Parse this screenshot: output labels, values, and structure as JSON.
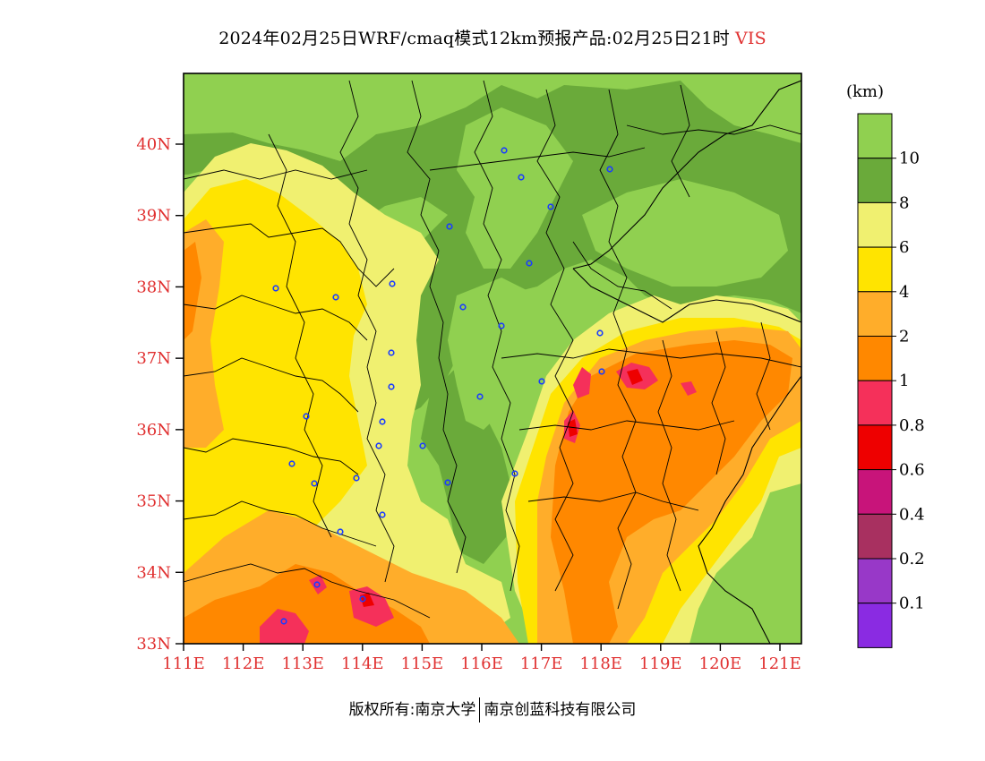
{
  "title": {
    "text": "2024年02月25日WRF/cmaq模式12km预报产品:02月25日21时",
    "variable": "VIS"
  },
  "axes": {
    "lat_labels": [
      "40N",
      "39N",
      "38N",
      "37N",
      "36N",
      "35N",
      "34N",
      "33N"
    ],
    "lon_labels": [
      "111E",
      "112E",
      "113E",
      "114E",
      "115E",
      "116E",
      "117E",
      "118E",
      "119E",
      "120E",
      "121E"
    ],
    "label_color": "#e03030"
  },
  "legend": {
    "unit": "(km)",
    "boundaries": [
      "10",
      "8",
      "6",
      "4",
      "2",
      "1",
      "0.8",
      "0.6",
      "0.4",
      "0.2",
      "0.1"
    ],
    "colors": [
      "#90d050",
      "#6aaa3a",
      "#f0f070",
      "#ffe400",
      "#ffad2a",
      "#ff8800",
      "#f5305a",
      "#ee0000",
      "#c8147a",
      "#a83060",
      "#9838c8",
      "#8a2be2"
    ]
  },
  "footer": {
    "copyright_left": "版权所有:南京大学",
    "copyright_right": "南京创蓝科技有限公司"
  }
}
